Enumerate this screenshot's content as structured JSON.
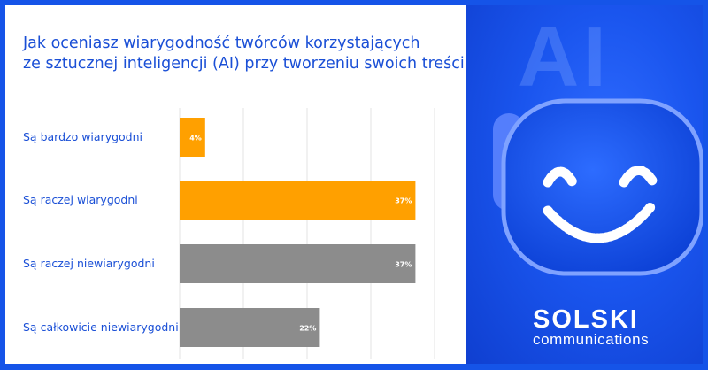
{
  "title_lines": [
    "Jak oceniasz wiarygodność twórców korzystających",
    "ze sztucznej inteligencji (AI) przy tworzeniu swoich treści?"
  ],
  "chart_data": {
    "type": "bar",
    "orientation": "horizontal",
    "categories": [
      "Są bardzo wiarygodni",
      "Są raczej wiarygodni",
      "Są raczej niewiarygodni",
      "Są całkowicie niewiarygodni"
    ],
    "values": [
      4,
      37,
      37,
      22
    ],
    "value_labels": [
      "4%",
      "37%",
      "37%",
      "22%"
    ],
    "bar_colors": [
      "#ffa000",
      "#ffa000",
      "#8c8c8c",
      "#8c8c8c"
    ],
    "xlim": [
      0,
      40
    ],
    "grid": true
  },
  "brand": {
    "name": "SOLSKI",
    "tagline": "communications",
    "art_text": "AI"
  },
  "colors": {
    "accent_blue": "#1554e8",
    "orange": "#ffa000",
    "gray": "#8c8c8c"
  }
}
